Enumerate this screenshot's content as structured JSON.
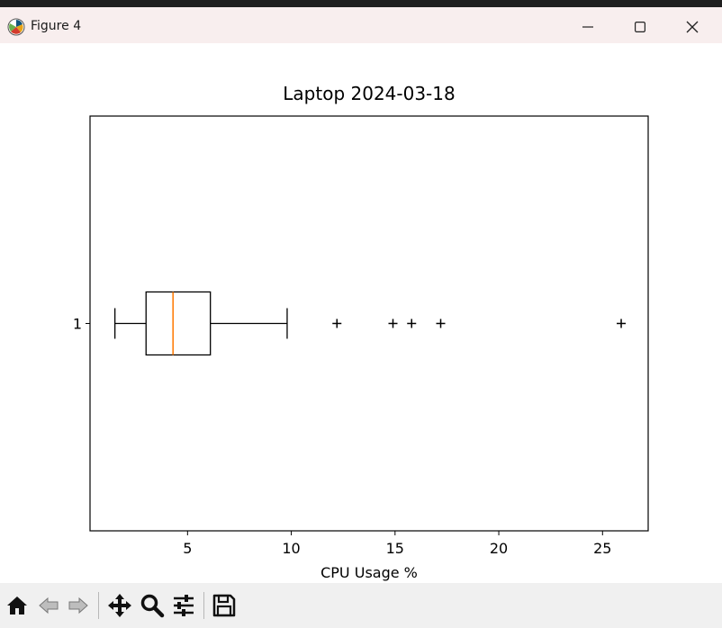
{
  "window": {
    "title": "Figure 4"
  },
  "chart_data": {
    "type": "boxplot",
    "orientation": "horizontal",
    "title": "Laptop 2024-03-18",
    "xlabel": "CPU Usage %",
    "ylabel": "",
    "xlim": [
      0.3,
      27.2
    ],
    "xticks": [
      5,
      10,
      15,
      20,
      25
    ],
    "categories": [
      "1"
    ],
    "boxes": [
      {
        "label": "1",
        "whisker_low": 1.5,
        "q1": 3.0,
        "median": 4.3,
        "q3": 6.1,
        "whisker_high": 9.8,
        "outliers": [
          12.2,
          14.9,
          15.8,
          17.2,
          25.9
        ]
      }
    ],
    "colors": {
      "box": "#000000",
      "median": "#ff7f0e"
    }
  },
  "toolbar": {
    "buttons": [
      {
        "name": "home-icon"
      },
      {
        "name": "back-icon"
      },
      {
        "name": "forward-icon"
      },
      {
        "name": "pan-icon"
      },
      {
        "name": "zoom-icon"
      },
      {
        "name": "configure-subplots-icon"
      },
      {
        "name": "save-icon"
      }
    ]
  }
}
